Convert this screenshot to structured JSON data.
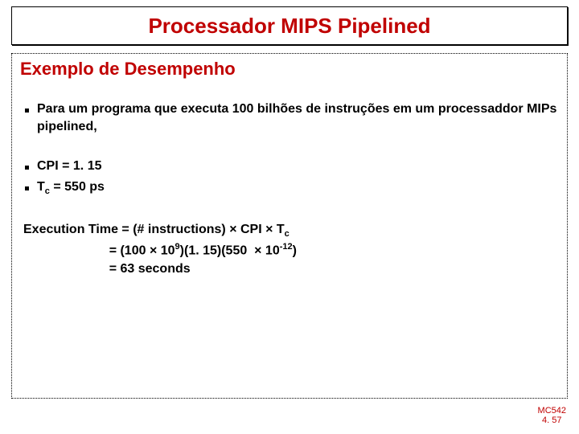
{
  "colors": {
    "title": "#c00000",
    "subtitle": "#c00000",
    "body": "#000000",
    "footer": "#c00000",
    "background": "#ffffff"
  },
  "fonts": {
    "family": "Comic Sans MS",
    "title_size": 26,
    "subtitle_size": 22,
    "body_size": 16,
    "footer_size": 11
  },
  "title": "Processador MIPS Pipelined",
  "subtitle": "Exemplo de Desempenho",
  "bullets": {
    "b1": "Para um programa que executa 100 bilhões de instruções  em um processaddor MIPs pipelined,",
    "b2": "CPI = 1. 15",
    "b3_pre": "T",
    "b3_sub": "c",
    "b3_post": " = 550 ps"
  },
  "equation": {
    "l1_a": "Execution Time = (# instructions) × CPI × T",
    "l1_sub": "c",
    "l2_a": "                        = (100 × 10",
    "l2_sup1": "9",
    "l2_b": ")(1. 15)(550  × 10",
    "l2_sup2": "-12",
    "l2_c": ")",
    "l3": "                        = 63 seconds"
  },
  "footer": {
    "line1": "MC542",
    "line2": "4. 57"
  }
}
